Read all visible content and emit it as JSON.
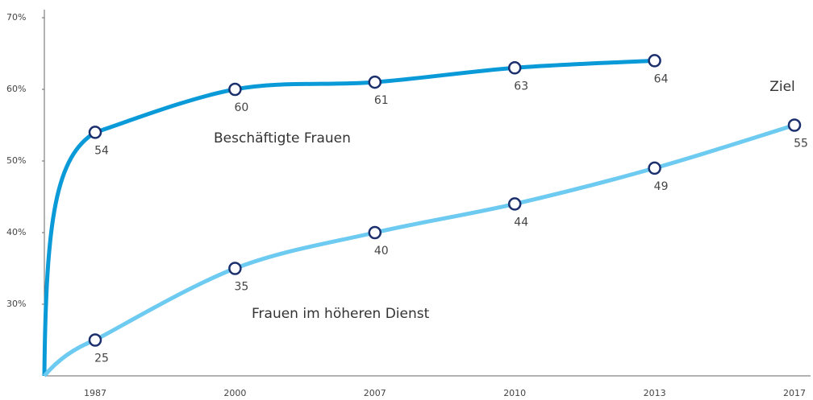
{
  "chart_data": {
    "type": "line",
    "categories": [
      "1987",
      "2000",
      "2007",
      "2010",
      "2013",
      "2017"
    ],
    "series": [
      {
        "name": "Beschäftigte Frauen",
        "color": "#0a9ad8",
        "values": [
          54,
          60,
          61,
          63,
          64,
          null
        ]
      },
      {
        "name": "Frauen im höheren Dienst",
        "color": "#6dcaf0",
        "values": [
          25,
          35,
          40,
          44,
          49,
          55
        ]
      }
    ],
    "annotation": "Ziel",
    "marker_color": "#1b2f6d",
    "ylim": [
      20,
      70
    ],
    "yticks": [
      {
        "value": 30,
        "label": "30%"
      },
      {
        "value": 40,
        "label": "40%"
      },
      {
        "value": 50,
        "label": "50%"
      },
      {
        "value": 60,
        "label": "60%"
      },
      {
        "value": 70,
        "label": "70%"
      }
    ]
  }
}
